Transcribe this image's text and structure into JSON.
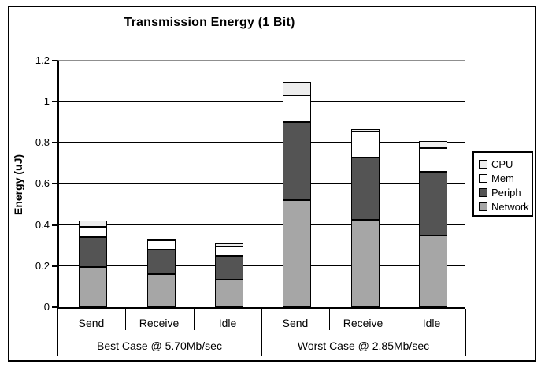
{
  "chart_data": {
    "type": "bar",
    "stacked": true,
    "title": "Transmission Energy (1 Bit)",
    "ylabel": "Energy (uJ)",
    "xlabel": "",
    "ylim": [
      0,
      1.2
    ],
    "grid": "horizontal",
    "ytick_values": [
      0,
      0.2,
      0.4,
      0.6,
      0.8,
      1,
      1.2
    ],
    "ytick_labels": [
      "0",
      "0.2",
      "0.4",
      "0.6",
      "0.8",
      "1",
      "1.2"
    ],
    "categories": [
      "Send",
      "Receive",
      "Idle",
      "Send",
      "Receive",
      "Idle"
    ],
    "groups": [
      {
        "label": "Best Case @ 5.70Mb/sec",
        "start": 0,
        "end": 3
      },
      {
        "label": "Worst Case @ 2.85Mb/sec",
        "start": 3,
        "end": 6
      }
    ],
    "series": [
      {
        "name": "Network",
        "color": "#a6a6a6",
        "values": [
          0.195,
          0.16,
          0.135,
          0.52,
          0.425,
          0.35
        ]
      },
      {
        "name": "Periph",
        "color": "#545454",
        "values": [
          0.145,
          0.12,
          0.115,
          0.38,
          0.305,
          0.31
        ]
      },
      {
        "name": "Mem",
        "color": "#ffffff",
        "values": [
          0.05,
          0.045,
          0.045,
          0.13,
          0.125,
          0.115
        ]
      },
      {
        "name": "CPU",
        "color": "#ededed",
        "values": [
          0.03,
          0.005,
          0.015,
          0.065,
          0.01,
          0.035
        ]
      }
    ],
    "stack_totals": [
      0.42,
      0.33,
      0.31,
      1.095,
      0.865,
      0.81
    ],
    "legend": {
      "position": "right",
      "entries": [
        "CPU",
        "Mem",
        "Periph",
        "Network"
      ]
    }
  },
  "colors": {
    "axis": "#000000",
    "plot_border_light": "#8f8f8f",
    "gridline": "#000000",
    "background": "#ffffff",
    "text": "#000000"
  }
}
